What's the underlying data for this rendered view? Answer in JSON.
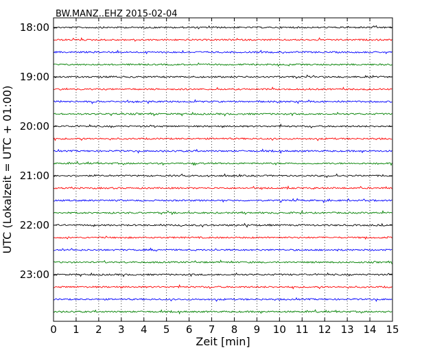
{
  "chart_data": {
    "type": "line",
    "title": "BW.MANZ..EHZ 2015-02-04",
    "xlabel": "Zeit  [min]",
    "ylabel": "UTC (Lokalzeit = UTC + 01:00)",
    "xlim": [
      0,
      15
    ],
    "x_ticks": [
      "0",
      "1",
      "2",
      "3",
      "4",
      "5",
      "6",
      "7",
      "8",
      "9",
      "10",
      "11",
      "12",
      "13",
      "14",
      "15"
    ],
    "y_tick_labels": [
      "18:00",
      "19:00",
      "20:00",
      "21:00",
      "22:00",
      "23:00"
    ],
    "grid": "vertical-dotted",
    "series_colors": [
      "#000000",
      "#ff0000",
      "#0000ff",
      "#008000"
    ],
    "traces_start": [
      "18:00",
      "18:15",
      "18:30",
      "18:45",
      "19:00",
      "19:15",
      "19:30",
      "19:45",
      "20:00",
      "20:15",
      "20:30",
      "20:45",
      "21:00",
      "21:15",
      "21:30",
      "21:45",
      "22:00",
      "22:15",
      "22:30",
      "22:45",
      "23:00",
      "23:15",
      "23:30",
      "23:45"
    ]
  }
}
